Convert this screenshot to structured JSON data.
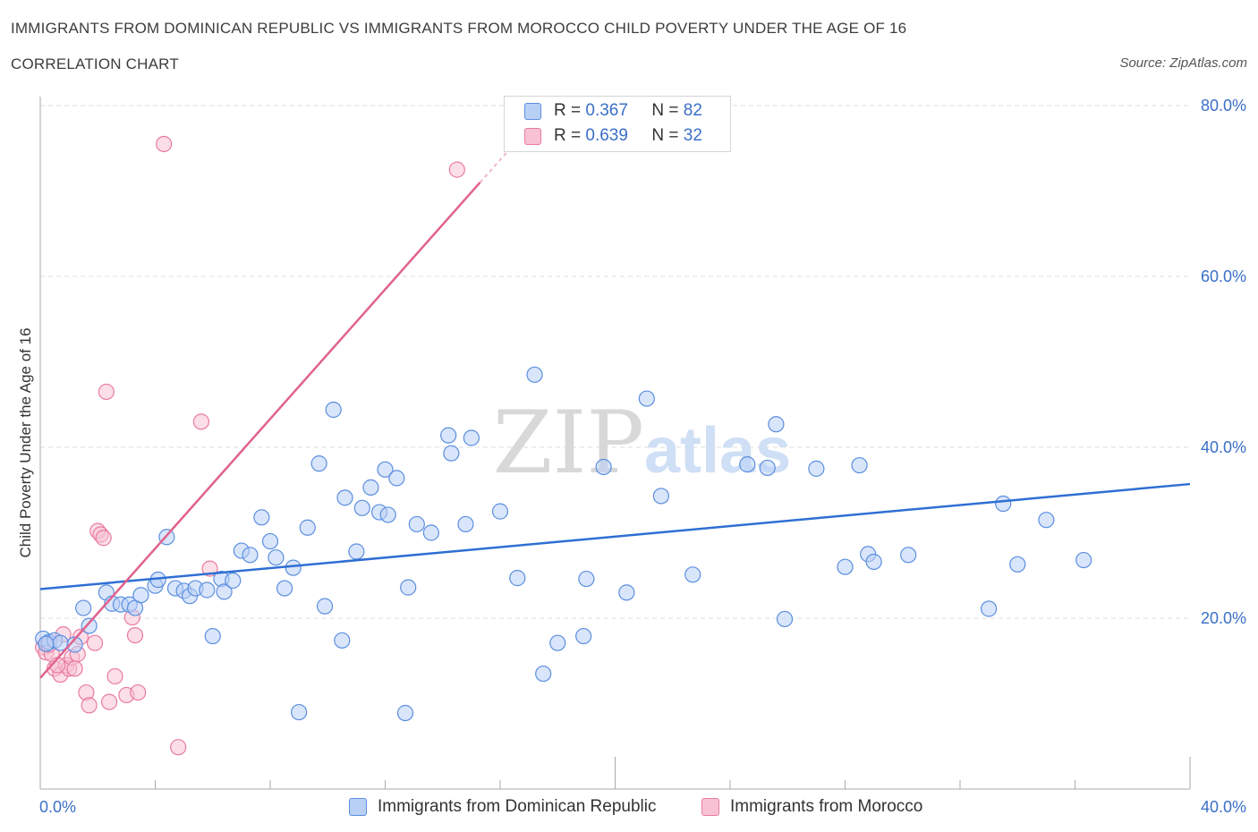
{
  "header": {
    "title": "IMMIGRANTS FROM DOMINICAN REPUBLIC VS IMMIGRANTS FROM MOROCCO CHILD POVERTY UNDER THE AGE OF 16",
    "subtitle": "CORRELATION CHART",
    "source": "Source: ZipAtlas.com"
  },
  "watermark": {
    "zip": "ZIP",
    "atlas": "atlas"
  },
  "legend": {
    "r_label": "R = ",
    "n_label": "N = ",
    "series": [
      {
        "r": "0.367",
        "n": "82"
      },
      {
        "r": "0.639",
        "n": "32"
      }
    ]
  },
  "bottom_legend": {
    "labels": [
      "Immigrants from Dominican Republic",
      "Immigrants from Morocco"
    ]
  },
  "colors": {
    "blue_fill": "#b9d0f5",
    "blue_stroke": "#5b8fe0",
    "blue_line": "#2f6fd3",
    "pink_fill": "#f8c2d4",
    "pink_stroke": "#ea7ba0",
    "pink_line": "#e0628e",
    "axis_text": "#3a6fc7",
    "grid": "#dddddd"
  },
  "chart_data": {
    "type": "scatter",
    "title": "IMMIGRANTS FROM DOMINICAN REPUBLIC VS IMMIGRANTS FROM MOROCCO CHILD POVERTY UNDER THE AGE OF 16",
    "xlabel": "",
    "ylabel": "Child Poverty Under the Age of 16",
    "xlim": [
      0,
      40
    ],
    "ylim": [
      0,
      80
    ],
    "x_tick_labels": [
      "0.0%",
      "40.0%"
    ],
    "y_ticks": [
      20,
      40,
      60,
      80
    ],
    "y_tick_labels": [
      "20.0%",
      "40.0%",
      "60.0%",
      "80.0%"
    ],
    "grid": true,
    "legend_position": "top-center",
    "series": [
      {
        "name": "Immigrants from Dominican Republic",
        "r": 0.367,
        "n": 82,
        "trend": {
          "x": [
            0,
            40
          ],
          "y": [
            23.4,
            35.7
          ]
        },
        "points": [
          [
            0.1,
            17.6
          ],
          [
            0.3,
            17.2
          ],
          [
            0.5,
            17.4
          ],
          [
            0.7,
            17.1
          ],
          [
            1.2,
            16.9
          ],
          [
            1.5,
            21.2
          ],
          [
            1.7,
            19.1
          ],
          [
            2.3,
            23.0
          ],
          [
            2.5,
            21.7
          ],
          [
            2.8,
            21.6
          ],
          [
            3.1,
            21.6
          ],
          [
            3.3,
            21.2
          ],
          [
            3.5,
            22.7
          ],
          [
            4.0,
            23.8
          ],
          [
            4.1,
            24.5
          ],
          [
            4.4,
            29.5
          ],
          [
            4.7,
            23.5
          ],
          [
            5.0,
            23.2
          ],
          [
            5.2,
            22.6
          ],
          [
            5.4,
            23.5
          ],
          [
            5.8,
            23.3
          ],
          [
            6.0,
            17.9
          ],
          [
            6.3,
            24.6
          ],
          [
            6.4,
            23.1
          ],
          [
            6.7,
            24.4
          ],
          [
            7.0,
            27.9
          ],
          [
            7.3,
            27.4
          ],
          [
            7.7,
            31.8
          ],
          [
            8.0,
            29.0
          ],
          [
            8.2,
            27.1
          ],
          [
            8.5,
            23.5
          ],
          [
            8.8,
            25.9
          ],
          [
            9.0,
            9.0
          ],
          [
            9.3,
            30.6
          ],
          [
            9.7,
            38.1
          ],
          [
            9.9,
            21.4
          ],
          [
            10.2,
            44.4
          ],
          [
            10.5,
            17.4
          ],
          [
            10.6,
            34.1
          ],
          [
            11.0,
            27.8
          ],
          [
            11.2,
            32.9
          ],
          [
            11.5,
            35.3
          ],
          [
            11.8,
            32.4
          ],
          [
            12.0,
            37.4
          ],
          [
            12.1,
            32.1
          ],
          [
            12.4,
            36.4
          ],
          [
            12.7,
            8.9
          ],
          [
            12.8,
            23.6
          ],
          [
            13.1,
            31.0
          ],
          [
            13.6,
            30.0
          ],
          [
            14.2,
            41.4
          ],
          [
            14.3,
            39.3
          ],
          [
            14.8,
            31.0
          ],
          [
            15.0,
            41.1
          ],
          [
            16.0,
            32.5
          ],
          [
            16.6,
            24.7
          ],
          [
            17.2,
            48.5
          ],
          [
            17.5,
            13.5
          ],
          [
            18.0,
            17.1
          ],
          [
            18.9,
            17.9
          ],
          [
            19.0,
            24.6
          ],
          [
            19.6,
            37.7
          ],
          [
            20.4,
            23.0
          ],
          [
            21.1,
            45.7
          ],
          [
            21.6,
            34.3
          ],
          [
            22.7,
            25.1
          ],
          [
            24.6,
            38.0
          ],
          [
            25.3,
            37.6
          ],
          [
            25.6,
            42.7
          ],
          [
            25.9,
            19.9
          ],
          [
            27.0,
            37.5
          ],
          [
            28.0,
            26.0
          ],
          [
            28.5,
            37.9
          ],
          [
            28.8,
            27.5
          ],
          [
            29.0,
            26.6
          ],
          [
            30.2,
            27.4
          ],
          [
            33.0,
            21.1
          ],
          [
            33.5,
            33.4
          ],
          [
            34.0,
            26.3
          ],
          [
            35.0,
            31.5
          ],
          [
            36.3,
            26.8
          ],
          [
            0.2,
            17.0
          ]
        ]
      },
      {
        "name": "Immigrants from Morocco",
        "r": 0.639,
        "n": 32,
        "trend": {
          "x": [
            0,
            15.3
          ],
          "y": [
            13.0,
            71.0
          ]
        },
        "points": [
          [
            0.1,
            16.6
          ],
          [
            0.2,
            16.0
          ],
          [
            0.4,
            15.8
          ],
          [
            0.5,
            14.1
          ],
          [
            0.7,
            13.4
          ],
          [
            0.8,
            18.1
          ],
          [
            0.9,
            14.5
          ],
          [
            1.0,
            14.1
          ],
          [
            1.1,
            15.4
          ],
          [
            1.2,
            14.1
          ],
          [
            1.3,
            15.8
          ],
          [
            1.4,
            17.8
          ],
          [
            1.6,
            11.3
          ],
          [
            1.7,
            9.8
          ],
          [
            1.9,
            17.1
          ],
          [
            2.0,
            30.2
          ],
          [
            2.1,
            29.8
          ],
          [
            2.2,
            29.4
          ],
          [
            2.3,
            46.5
          ],
          [
            2.4,
            10.2
          ],
          [
            2.6,
            13.2
          ],
          [
            3.0,
            11.0
          ],
          [
            3.2,
            20.1
          ],
          [
            3.3,
            18.0
          ],
          [
            3.4,
            11.3
          ],
          [
            4.3,
            75.5
          ],
          [
            4.8,
            4.9
          ],
          [
            5.6,
            43.0
          ],
          [
            5.9,
            25.8
          ],
          [
            14.5,
            72.5
          ],
          [
            0.3,
            16.9
          ],
          [
            0.6,
            14.5
          ]
        ]
      }
    ]
  }
}
